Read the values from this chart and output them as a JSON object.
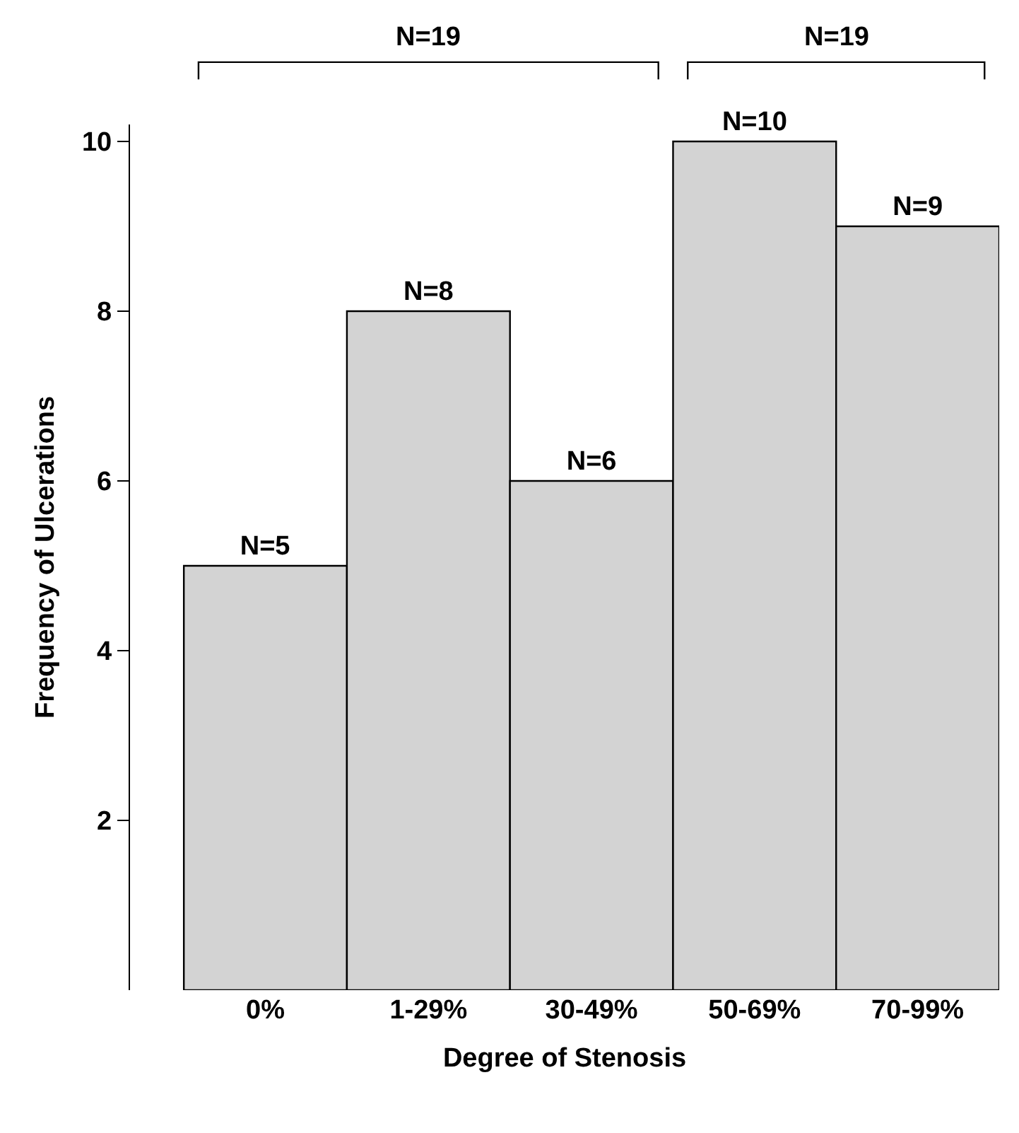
{
  "chart_data": {
    "type": "bar",
    "categories": [
      "0%",
      "1-29%",
      "30-49%",
      "50-69%",
      "70-99%"
    ],
    "values": [
      5,
      8,
      6,
      10,
      9
    ],
    "value_labels": [
      "N=5",
      "N=8",
      "N=6",
      "N=10",
      "N=9"
    ],
    "color": "#d3d3d3",
    "xlabel": "Degree of Stenosis",
    "ylabel": "Frequency of Ulcerations",
    "ylim": [
      0,
      10.2
    ],
    "yticks": [
      2,
      4,
      6,
      8,
      10
    ],
    "legend": false,
    "annotations": [
      "N=19",
      "N=19"
    ]
  }
}
